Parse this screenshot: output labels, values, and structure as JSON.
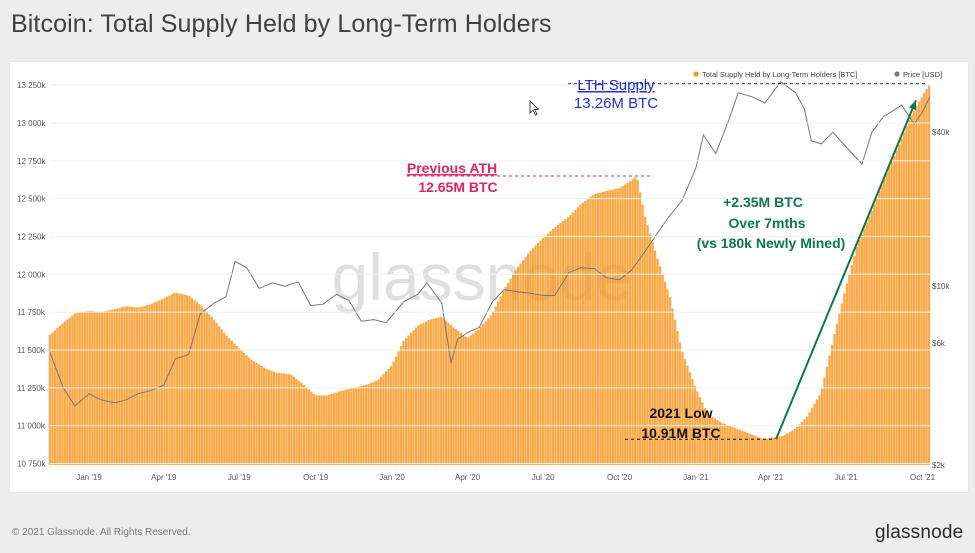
{
  "page": {
    "title": "Bitcoin: Total Supply Held by Long-Term Holders",
    "footer": "© 2021 Glassnode. All Rights Reserved.",
    "logo": "glassnode",
    "watermark": "glassnode"
  },
  "chart_data": {
    "type": "area",
    "title": "Bitcoin: Total Supply Held by Long-Term Holders",
    "legend": {
      "placement": "top-right",
      "items": [
        {
          "name": "Total Supply Held by Long-Term Holders [BTC]",
          "color": "#f7931a"
        },
        {
          "name": "Price [USD]",
          "color": "#777777"
        }
      ]
    },
    "x_tick_labels": [
      "Jan '19",
      "Apr '19",
      "Jul '19",
      "Oct '19",
      "Jan '20",
      "Apr '20",
      "Jul '20",
      "Oct '20",
      "Jan '21",
      "Apr '21",
      "Jul '21",
      "Oct '21"
    ],
    "x_range": [
      "2018-11-15",
      "2021-10-10"
    ],
    "y_left": {
      "label": "",
      "range": [
        10740,
        13350
      ],
      "ticks": [
        10750,
        11000,
        11250,
        11500,
        11750,
        12000,
        12250,
        12500,
        12750,
        13000,
        13250
      ],
      "tick_labels": [
        "10 750k",
        "11 000k",
        "11 250k",
        "11 500k",
        "11 750k",
        "12 000k",
        "12 250k",
        "12 500k",
        "12 750k",
        "13 000k",
        "13 250k"
      ]
    },
    "y_right": {
      "label": "",
      "scale": "log",
      "range": [
        2000,
        70000
      ],
      "ticks": [
        2000,
        6000,
        10000,
        40000
      ],
      "tick_labels": [
        "$2k",
        "$6k",
        "$10k",
        "$40k"
      ]
    },
    "series": [
      {
        "name": "Total Supply Held by Long-Term Holders [BTC]",
        "unit": "k BTC",
        "color": "#f7931a",
        "x": [
          "2018-11-15",
          "2018-12-01",
          "2018-12-15",
          "2019-01-01",
          "2019-01-15",
          "2019-02-01",
          "2019-02-15",
          "2019-03-01",
          "2019-03-15",
          "2019-04-01",
          "2019-04-15",
          "2019-05-01",
          "2019-05-15",
          "2019-06-01",
          "2019-06-15",
          "2019-07-01",
          "2019-07-15",
          "2019-08-01",
          "2019-08-15",
          "2019-09-01",
          "2019-09-15",
          "2019-10-01",
          "2019-10-15",
          "2019-11-01",
          "2019-11-15",
          "2019-12-01",
          "2019-12-15",
          "2020-01-01",
          "2020-01-15",
          "2020-02-01",
          "2020-02-15",
          "2020-03-01",
          "2020-03-15",
          "2020-04-01",
          "2020-04-15",
          "2020-05-01",
          "2020-05-15",
          "2020-06-01",
          "2020-06-15",
          "2020-07-01",
          "2020-07-15",
          "2020-08-01",
          "2020-08-15",
          "2020-09-01",
          "2020-09-15",
          "2020-10-01",
          "2020-10-15",
          "2020-10-22",
          "2020-11-01",
          "2020-11-15",
          "2020-12-01",
          "2020-12-15",
          "2021-01-01",
          "2021-01-15",
          "2021-02-01",
          "2021-02-15",
          "2021-03-01",
          "2021-03-15",
          "2021-03-25",
          "2021-04-01",
          "2021-04-15",
          "2021-05-01",
          "2021-05-15",
          "2021-06-01",
          "2021-06-15",
          "2021-07-01",
          "2021-07-15",
          "2021-08-01",
          "2021-08-15",
          "2021-09-01",
          "2021-09-15",
          "2021-10-01",
          "2021-10-10"
        ],
        "values": [
          11600,
          11680,
          11740,
          11760,
          11750,
          11770,
          11790,
          11780,
          11800,
          11840,
          11880,
          11860,
          11800,
          11700,
          11600,
          11510,
          11440,
          11380,
          11350,
          11340,
          11280,
          11200,
          11200,
          11230,
          11250,
          11270,
          11300,
          11400,
          11560,
          11660,
          11700,
          11720,
          11650,
          11580,
          11640,
          11740,
          11900,
          12050,
          12150,
          12240,
          12310,
          12380,
          12460,
          12530,
          12550,
          12570,
          12620,
          12650,
          12380,
          12120,
          11850,
          11500,
          11250,
          11080,
          11020,
          10990,
          10960,
          10930,
          10910,
          10920,
          10930,
          10980,
          11060,
          11220,
          11560,
          11920,
          12200,
          12420,
          12620,
          12830,
          13020,
          13180,
          13260
        ]
      },
      {
        "name": "Price [USD]",
        "unit": "USD",
        "color": "#777777",
        "x": [
          "2018-11-15",
          "2018-12-01",
          "2018-12-15",
          "2019-01-01",
          "2019-01-15",
          "2019-02-01",
          "2019-02-15",
          "2019-03-01",
          "2019-03-15",
          "2019-04-01",
          "2019-04-15",
          "2019-05-01",
          "2019-05-15",
          "2019-06-01",
          "2019-06-15",
          "2019-06-26",
          "2019-07-10",
          "2019-07-25",
          "2019-08-10",
          "2019-08-25",
          "2019-09-10",
          "2019-09-25",
          "2019-10-10",
          "2019-10-26",
          "2019-11-10",
          "2019-11-25",
          "2019-12-10",
          "2019-12-25",
          "2020-01-15",
          "2020-02-01",
          "2020-02-12",
          "2020-03-01",
          "2020-03-12",
          "2020-03-20",
          "2020-04-01",
          "2020-04-15",
          "2020-05-01",
          "2020-05-15",
          "2020-06-01",
          "2020-06-15",
          "2020-07-01",
          "2020-07-15",
          "2020-08-01",
          "2020-08-15",
          "2020-09-01",
          "2020-09-15",
          "2020-10-01",
          "2020-10-15",
          "2020-11-01",
          "2020-11-15",
          "2020-12-01",
          "2020-12-15",
          "2021-01-01",
          "2021-01-10",
          "2021-01-25",
          "2021-02-10",
          "2021-02-21",
          "2021-03-10",
          "2021-03-25",
          "2021-04-13",
          "2021-05-01",
          "2021-05-12",
          "2021-05-20",
          "2021-06-01",
          "2021-06-15",
          "2021-07-01",
          "2021-07-20",
          "2021-08-01",
          "2021-08-15",
          "2021-09-06",
          "2021-09-21",
          "2021-10-01",
          "2021-10-10"
        ],
        "values": [
          5500,
          4000,
          3400,
          3800,
          3600,
          3500,
          3600,
          3800,
          3900,
          4100,
          5200,
          5400,
          7800,
          8600,
          9100,
          12500,
          11800,
          9800,
          10300,
          10000,
          10400,
          8400,
          8500,
          9300,
          8800,
          7300,
          7400,
          7200,
          8700,
          9300,
          10300,
          8600,
          5000,
          6200,
          6600,
          6900,
          8700,
          9700,
          9500,
          9400,
          9200,
          9200,
          11300,
          11800,
          11700,
          10800,
          10600,
          11500,
          13700,
          16000,
          19000,
          21500,
          29000,
          39000,
          33000,
          45000,
          57000,
          55000,
          52000,
          63000,
          57000,
          49000,
          37000,
          36000,
          40000,
          35000,
          30000,
          40000,
          46000,
          51000,
          43000,
          48000,
          55000
        ]
      }
    ],
    "annotations": [
      {
        "line1": "LTH Supply",
        "line2": "13.26M BTC",
        "color": "#1f2fd4",
        "value": 13260
      },
      {
        "line1": "Previous ATH",
        "line2": "12.65M BTC",
        "color": "#e0245e",
        "value": 12650
      },
      {
        "line1": "+2.35M BTC",
        "line2": "Over 7mths",
        "line3": "(vs 180k Newly Mined)",
        "color": "#0a7a4a"
      },
      {
        "line1": "2021 Low",
        "line2": "10.91M BTC",
        "color": "#111111",
        "value": 10910
      }
    ]
  }
}
